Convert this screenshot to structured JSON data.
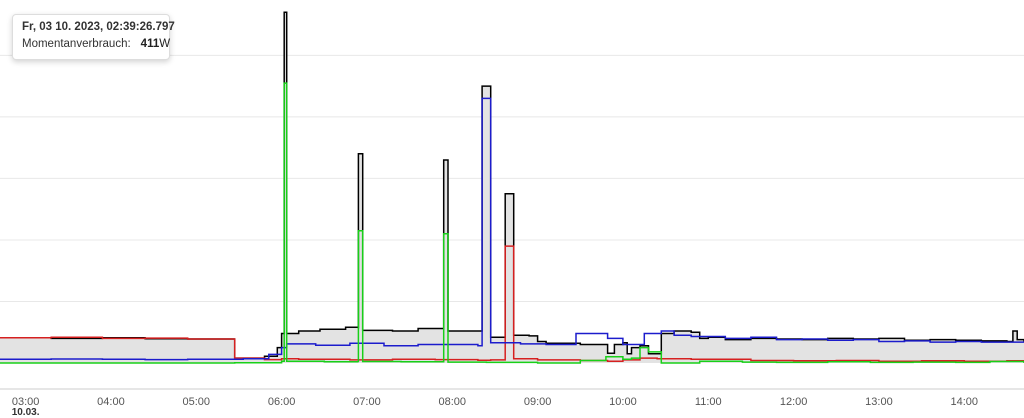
{
  "tooltip": {
    "title": "Fr, 03 10. 2023, 02:39:26.797",
    "label": "Momentanverbrauch:",
    "value": "411",
    "unit": "W"
  },
  "chart_data": {
    "type": "line",
    "title": "",
    "xlabel": "",
    "ylabel": "",
    "x_ticks": [
      "03:00",
      "04:00",
      "05:00",
      "06:00",
      "07:00",
      "08:00",
      "09:00",
      "10:00",
      "11:00",
      "12:00",
      "13:00",
      "14:00"
    ],
    "x_tick_sublabel": "10.03.",
    "xlim": [
      2.7,
      14.7
    ],
    "ylim": [
      0,
      5900
    ],
    "grid": true,
    "legend": "none",
    "step": true,
    "series": [
      {
        "color": "#000000",
        "fill": "#e3e3e3",
        "points": [
          [
            2.7,
            410
          ],
          [
            3.3,
            400
          ],
          [
            3.9,
            410
          ],
          [
            4.4,
            395
          ],
          [
            4.9,
            390
          ],
          [
            5.45,
            400
          ],
          [
            5.45,
            80
          ],
          [
            5.8,
            110
          ],
          [
            5.95,
            250
          ],
          [
            6.0,
            480
          ],
          [
            6.03,
            5700
          ],
          [
            6.06,
            480
          ],
          [
            6.2,
            520
          ],
          [
            6.45,
            550
          ],
          [
            6.75,
            580
          ],
          [
            6.9,
            560
          ],
          [
            6.9,
            3400
          ],
          [
            6.95,
            3400
          ],
          [
            6.95,
            530
          ],
          [
            7.3,
            520
          ],
          [
            7.6,
            560
          ],
          [
            7.9,
            540
          ],
          [
            7.9,
            3300
          ],
          [
            7.95,
            3300
          ],
          [
            7.95,
            520
          ],
          [
            8.1,
            520
          ],
          [
            8.35,
            560
          ],
          [
            8.35,
            4500
          ],
          [
            8.45,
            4500
          ],
          [
            8.45,
            420
          ],
          [
            8.62,
            420
          ],
          [
            8.62,
            2750
          ],
          [
            8.72,
            2750
          ],
          [
            8.72,
            450
          ],
          [
            8.9,
            440
          ],
          [
            9.0,
            350
          ],
          [
            9.1,
            320
          ],
          [
            9.5,
            310
          ],
          [
            9.5,
            300
          ],
          [
            9.82,
            300
          ],
          [
            9.82,
            160
          ],
          [
            9.9,
            300
          ],
          [
            10.0,
            330
          ],
          [
            10.05,
            150
          ],
          [
            10.1,
            250
          ],
          [
            10.2,
            280
          ],
          [
            10.3,
            150
          ],
          [
            10.45,
            480
          ],
          [
            10.6,
            520
          ],
          [
            10.8,
            500
          ],
          [
            10.9,
            400
          ],
          [
            11.0,
            420
          ],
          [
            11.2,
            380
          ],
          [
            11.5,
            400
          ],
          [
            11.8,
            390
          ],
          [
            12.1,
            380
          ],
          [
            12.4,
            400
          ],
          [
            12.7,
            390
          ],
          [
            13.0,
            400
          ],
          [
            13.3,
            370
          ],
          [
            13.6,
            380
          ],
          [
            13.9,
            370
          ],
          [
            14.2,
            360
          ],
          [
            14.5,
            350
          ],
          [
            14.57,
            520
          ],
          [
            14.62,
            380
          ],
          [
            14.7,
            350
          ]
        ]
      },
      {
        "color": "#d62020",
        "points": [
          [
            2.7,
            410
          ],
          [
            3.3,
            420
          ],
          [
            3.9,
            400
          ],
          [
            4.4,
            405
          ],
          [
            4.9,
            390
          ],
          [
            5.45,
            390
          ],
          [
            5.45,
            80
          ],
          [
            5.8,
            55
          ],
          [
            6.0,
            70
          ],
          [
            6.2,
            60
          ],
          [
            6.8,
            50
          ],
          [
            7.3,
            60
          ],
          [
            7.8,
            55
          ],
          [
            8.3,
            45
          ],
          [
            8.45,
            50
          ],
          [
            8.62,
            50
          ],
          [
            8.62,
            1900
          ],
          [
            8.72,
            1900
          ],
          [
            8.72,
            70
          ],
          [
            9.0,
            50
          ],
          [
            9.5,
            40
          ],
          [
            9.82,
            30
          ],
          [
            10.0,
            50
          ],
          [
            10.2,
            80
          ],
          [
            10.4,
            70
          ],
          [
            10.8,
            60
          ],
          [
            11.5,
            40
          ],
          [
            12.0,
            35
          ],
          [
            12.5,
            40
          ],
          [
            13.0,
            30
          ],
          [
            13.5,
            35
          ],
          [
            14.0,
            30
          ],
          [
            14.5,
            35
          ],
          [
            14.7,
            30
          ]
        ]
      },
      {
        "color": "#1c1ccc",
        "points": [
          [
            2.7,
            60
          ],
          [
            3.3,
            65
          ],
          [
            3.9,
            60
          ],
          [
            4.4,
            55
          ],
          [
            4.9,
            60
          ],
          [
            5.45,
            60
          ],
          [
            5.55,
            70
          ],
          [
            5.85,
            140
          ],
          [
            6.0,
            250
          ],
          [
            6.06,
            310
          ],
          [
            6.4,
            290
          ],
          [
            6.8,
            320
          ],
          [
            7.2,
            280
          ],
          [
            7.6,
            300
          ],
          [
            7.95,
            300
          ],
          [
            8.3,
            280
          ],
          [
            8.35,
            320
          ],
          [
            8.35,
            4300
          ],
          [
            8.45,
            4300
          ],
          [
            8.45,
            330
          ],
          [
            8.8,
            310
          ],
          [
            9.1,
            300
          ],
          [
            9.45,
            480
          ],
          [
            9.82,
            480
          ],
          [
            9.82,
            400
          ],
          [
            10.0,
            300
          ],
          [
            10.25,
            480
          ],
          [
            10.45,
            520
          ],
          [
            10.6,
            450
          ],
          [
            10.8,
            430
          ],
          [
            11.2,
            400
          ],
          [
            11.5,
            420
          ],
          [
            11.8,
            380
          ],
          [
            12.1,
            390
          ],
          [
            12.4,
            370
          ],
          [
            12.7,
            380
          ],
          [
            13.0,
            350
          ],
          [
            13.3,
            360
          ],
          [
            13.6,
            340
          ],
          [
            13.9,
            350
          ],
          [
            14.2,
            340
          ],
          [
            14.7,
            330
          ]
        ]
      },
      {
        "color": "#18d018",
        "points": [
          [
            2.7,
            0
          ],
          [
            3.3,
            0
          ],
          [
            3.9,
            0
          ],
          [
            4.4,
            0
          ],
          [
            5.0,
            0
          ],
          [
            5.45,
            5
          ],
          [
            6.0,
            30
          ],
          [
            6.03,
            4550
          ],
          [
            6.06,
            30
          ],
          [
            6.5,
            20
          ],
          [
            6.9,
            15
          ],
          [
            6.9,
            2150
          ],
          [
            6.95,
            2150
          ],
          [
            6.95,
            25
          ],
          [
            7.4,
            20
          ],
          [
            7.9,
            20
          ],
          [
            7.9,
            2100
          ],
          [
            7.95,
            2100
          ],
          [
            7.95,
            15
          ],
          [
            8.4,
            10
          ],
          [
            9.0,
            0
          ],
          [
            9.5,
            40
          ],
          [
            9.8,
            100
          ],
          [
            10.0,
            60
          ],
          [
            10.1,
            80
          ],
          [
            10.2,
            250
          ],
          [
            10.3,
            180
          ],
          [
            10.45,
            0
          ],
          [
            10.9,
            30
          ],
          [
            11.4,
            15
          ],
          [
            11.8,
            10
          ],
          [
            12.4,
            20
          ],
          [
            12.9,
            10
          ],
          [
            13.4,
            15
          ],
          [
            13.9,
            10
          ],
          [
            14.3,
            25
          ],
          [
            14.7,
            0
          ]
        ]
      }
    ]
  }
}
